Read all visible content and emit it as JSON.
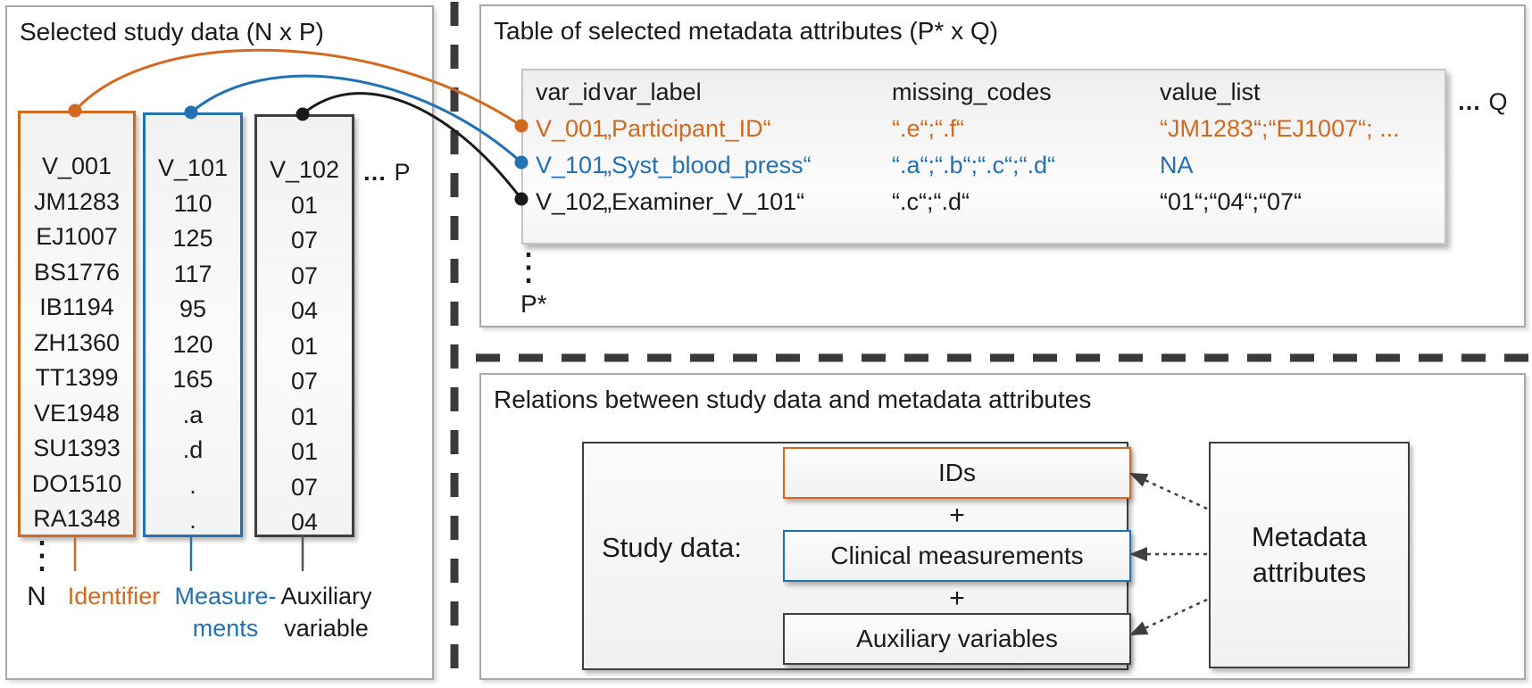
{
  "colors": {
    "accent_orange": "#d2691e",
    "accent_blue": "#2271b3",
    "accent_dark": "#3f3f3f"
  },
  "study": {
    "title": "Selected study data (N x P)",
    "col_dim_ellipsis": "…",
    "col_dim_label": "P",
    "row_dim_label": "N",
    "vertical_ellipsis": "⋮",
    "columns": [
      {
        "header": "V_001",
        "role_label_line1": "Identifier",
        "role_label_line2": "",
        "values": [
          "JM1283",
          "EJ1007",
          "BS1776",
          "IB1194",
          "ZH1360",
          "TT1399",
          "VE1948",
          "SU1393",
          "DO1510",
          "RA1348"
        ]
      },
      {
        "header": "V_101",
        "role_label_line1": "Measure-",
        "role_label_line2": "ments",
        "values": [
          "110",
          "125",
          "117",
          "95",
          "120",
          "165",
          ".a",
          ".d",
          ".",
          "."
        ]
      },
      {
        "header": "V_102",
        "role_label_line1": "Auxiliary",
        "role_label_line2": "variable",
        "values": [
          "01",
          "07",
          "07",
          "04",
          "01",
          "07",
          "01",
          "01",
          "07",
          "04"
        ]
      }
    ]
  },
  "metadata": {
    "title": "Table of selected metadata attributes (P* x Q)",
    "headers": {
      "var_id": "var_id",
      "var_label": "var_label",
      "missing_codes": "missing_codes",
      "value_list": "value_list"
    },
    "rows": [
      {
        "var_id": "V_001",
        "var_label": "„Participant_ID“",
        "missing_codes": "“.e“;“.f“",
        "value_list": "“JM1283“;“EJ1007“; ..."
      },
      {
        "var_id": "V_101",
        "var_label": "„Syst_blood_press“",
        "missing_codes": "“.a“;“.b“;“.c“;“.d“",
        "value_list": "NA"
      },
      {
        "var_id": "V_102",
        "var_label": "„Examiner_V_101“",
        "missing_codes": "“.c“;“.d“",
        "value_list": "“01“;“04“;“07“"
      }
    ],
    "col_dim_ellipsis": "…",
    "col_dim_label": "Q",
    "vertical_ellipsis": "⋮",
    "row_dim_label": "P*"
  },
  "relations": {
    "title": "Relations between study data and metadata attributes",
    "study_data_label": "Study data:",
    "plus": "+",
    "boxes": [
      {
        "label": "IDs"
      },
      {
        "label": "Clinical measurements"
      },
      {
        "label": "Auxiliary variables"
      }
    ],
    "metadata_box_label": "Metadata attributes"
  }
}
